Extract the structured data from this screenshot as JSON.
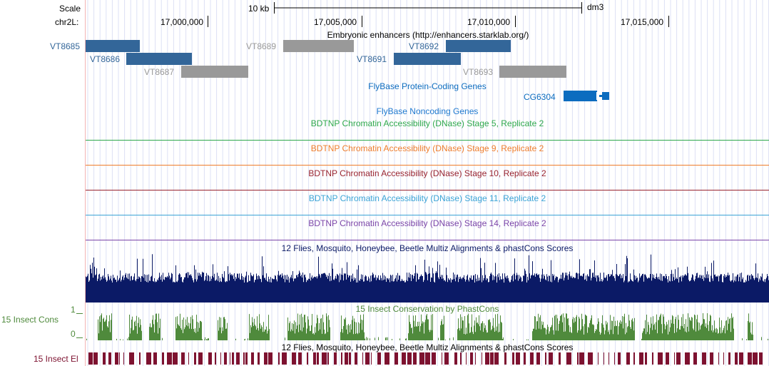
{
  "ruler": {
    "scale_label": "Scale",
    "chrom_label": "chr2L:",
    "scale_bar_label": "10 kb",
    "assembly": "dm3",
    "positions": [
      "17,000,000",
      "17,005,000",
      "17,010,000",
      "17,015,000"
    ]
  },
  "tracks": {
    "enhancers": {
      "title": "Embryonic enhancers (http://enhancers.starklab.org/)",
      "features": [
        {
          "name": "VT8685",
          "color": "#336699"
        },
        {
          "name": "VT8686",
          "color": "#336699"
        },
        {
          "name": "VT8687",
          "color": "#999999"
        },
        {
          "name": "VT8689",
          "color": "#999999"
        },
        {
          "name": "VT8691",
          "color": "#336699"
        },
        {
          "name": "VT8692",
          "color": "#336699"
        },
        {
          "name": "VT8693",
          "color": "#999999"
        }
      ]
    },
    "flybase_coding": {
      "title": "FlyBase Protein-Coding Genes",
      "color": "#0c6cbf",
      "gene": "CG6304"
    },
    "flybase_noncoding": {
      "title": "FlyBase Noncoding Genes",
      "color": "#1f79cf"
    },
    "dnase": [
      {
        "title": "BDTNP Chromatin Accessibility (DNase) Stage 5, Replicate 2",
        "color": "#2ea84c"
      },
      {
        "title": "BDTNP Chromatin Accessibility (DNase) Stage 9, Replicate 2",
        "color": "#ee7d2c"
      },
      {
        "title": "BDTNP Chromatin Accessibility (DNase) Stage 10, Replicate 2",
        "color": "#98232f"
      },
      {
        "title": "BDTNP Chromatin Accessibility (DNase) Stage 11, Replicate 2",
        "color": "#3ba4d6"
      },
      {
        "title": "BDTNP Chromatin Accessibility (DNase) Stage 14, Replicate 2",
        "color": "#7b45a8"
      }
    ],
    "multiz": {
      "title": "12 Flies, Mosquito, Honeybee, Beetle Multiz Alignments & phastCons Scores",
      "color": "#0b1a66"
    },
    "insect_cons": {
      "title": "15 Insect Conservation by PhastCons",
      "side_label": "15 Insect Cons",
      "axis_max": "1",
      "axis_min": "0",
      "color": "#4f8a3c"
    },
    "insect_el": {
      "title": "12 Flies, Mosquito, Honeybee, Beetle Multiz Alignments & phastCons Scores",
      "side_label": "15 Insect El",
      "color": "#7d1230"
    }
  }
}
